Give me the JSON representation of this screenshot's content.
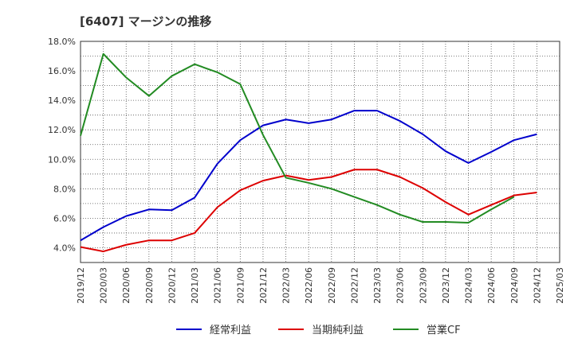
{
  "chart_data": {
    "type": "line",
    "title": "[6407]  マージンの推移",
    "xlabel": "",
    "ylabel": "",
    "x": [
      "2019/12",
      "2020/03",
      "2020/06",
      "2020/09",
      "2020/12",
      "2021/03",
      "2021/06",
      "2021/09",
      "2021/12",
      "2022/03",
      "2022/06",
      "2022/09",
      "2022/12",
      "2023/03",
      "2023/06",
      "2023/09",
      "2023/12",
      "2024/03",
      "2024/06",
      "2024/09",
      "2024/12",
      "2025/03"
    ],
    "ylim": [
      3.0,
      18.0
    ],
    "yticks": [
      "4.0%",
      "6.0%",
      "8.0%",
      "10.0%",
      "12.0%",
      "14.0%",
      "16.0%",
      "18.0%"
    ],
    "ytick_values": [
      4,
      6,
      8,
      10,
      12,
      14,
      16,
      18
    ],
    "grid": true,
    "legend_position": "bottom",
    "series": [
      {
        "name": "経常利益",
        "color": "#0000cc",
        "values": [
          4.5,
          5.4,
          6.15,
          6.6,
          6.55,
          7.4,
          9.7,
          11.3,
          12.3,
          12.7,
          12.45,
          12.7,
          13.3,
          13.3,
          12.6,
          11.7,
          10.55,
          9.75,
          10.5,
          11.3,
          11.7,
          null
        ]
      },
      {
        "name": "当期純利益",
        "color": "#dd0000",
        "values": [
          4.05,
          3.75,
          4.2,
          4.5,
          4.5,
          5.0,
          6.75,
          7.9,
          8.55,
          8.9,
          8.6,
          8.8,
          9.3,
          9.3,
          8.8,
          8.05,
          7.1,
          6.25,
          6.9,
          7.55,
          7.75,
          null
        ]
      },
      {
        "name": "営業CF",
        "color": "#228b22",
        "values": [
          11.6,
          17.15,
          15.55,
          14.3,
          15.65,
          16.45,
          15.9,
          15.1,
          11.65,
          8.75,
          8.4,
          8.0,
          7.45,
          6.9,
          6.25,
          5.75,
          5.75,
          5.7,
          6.6,
          7.45,
          null,
          null
        ]
      }
    ]
  }
}
